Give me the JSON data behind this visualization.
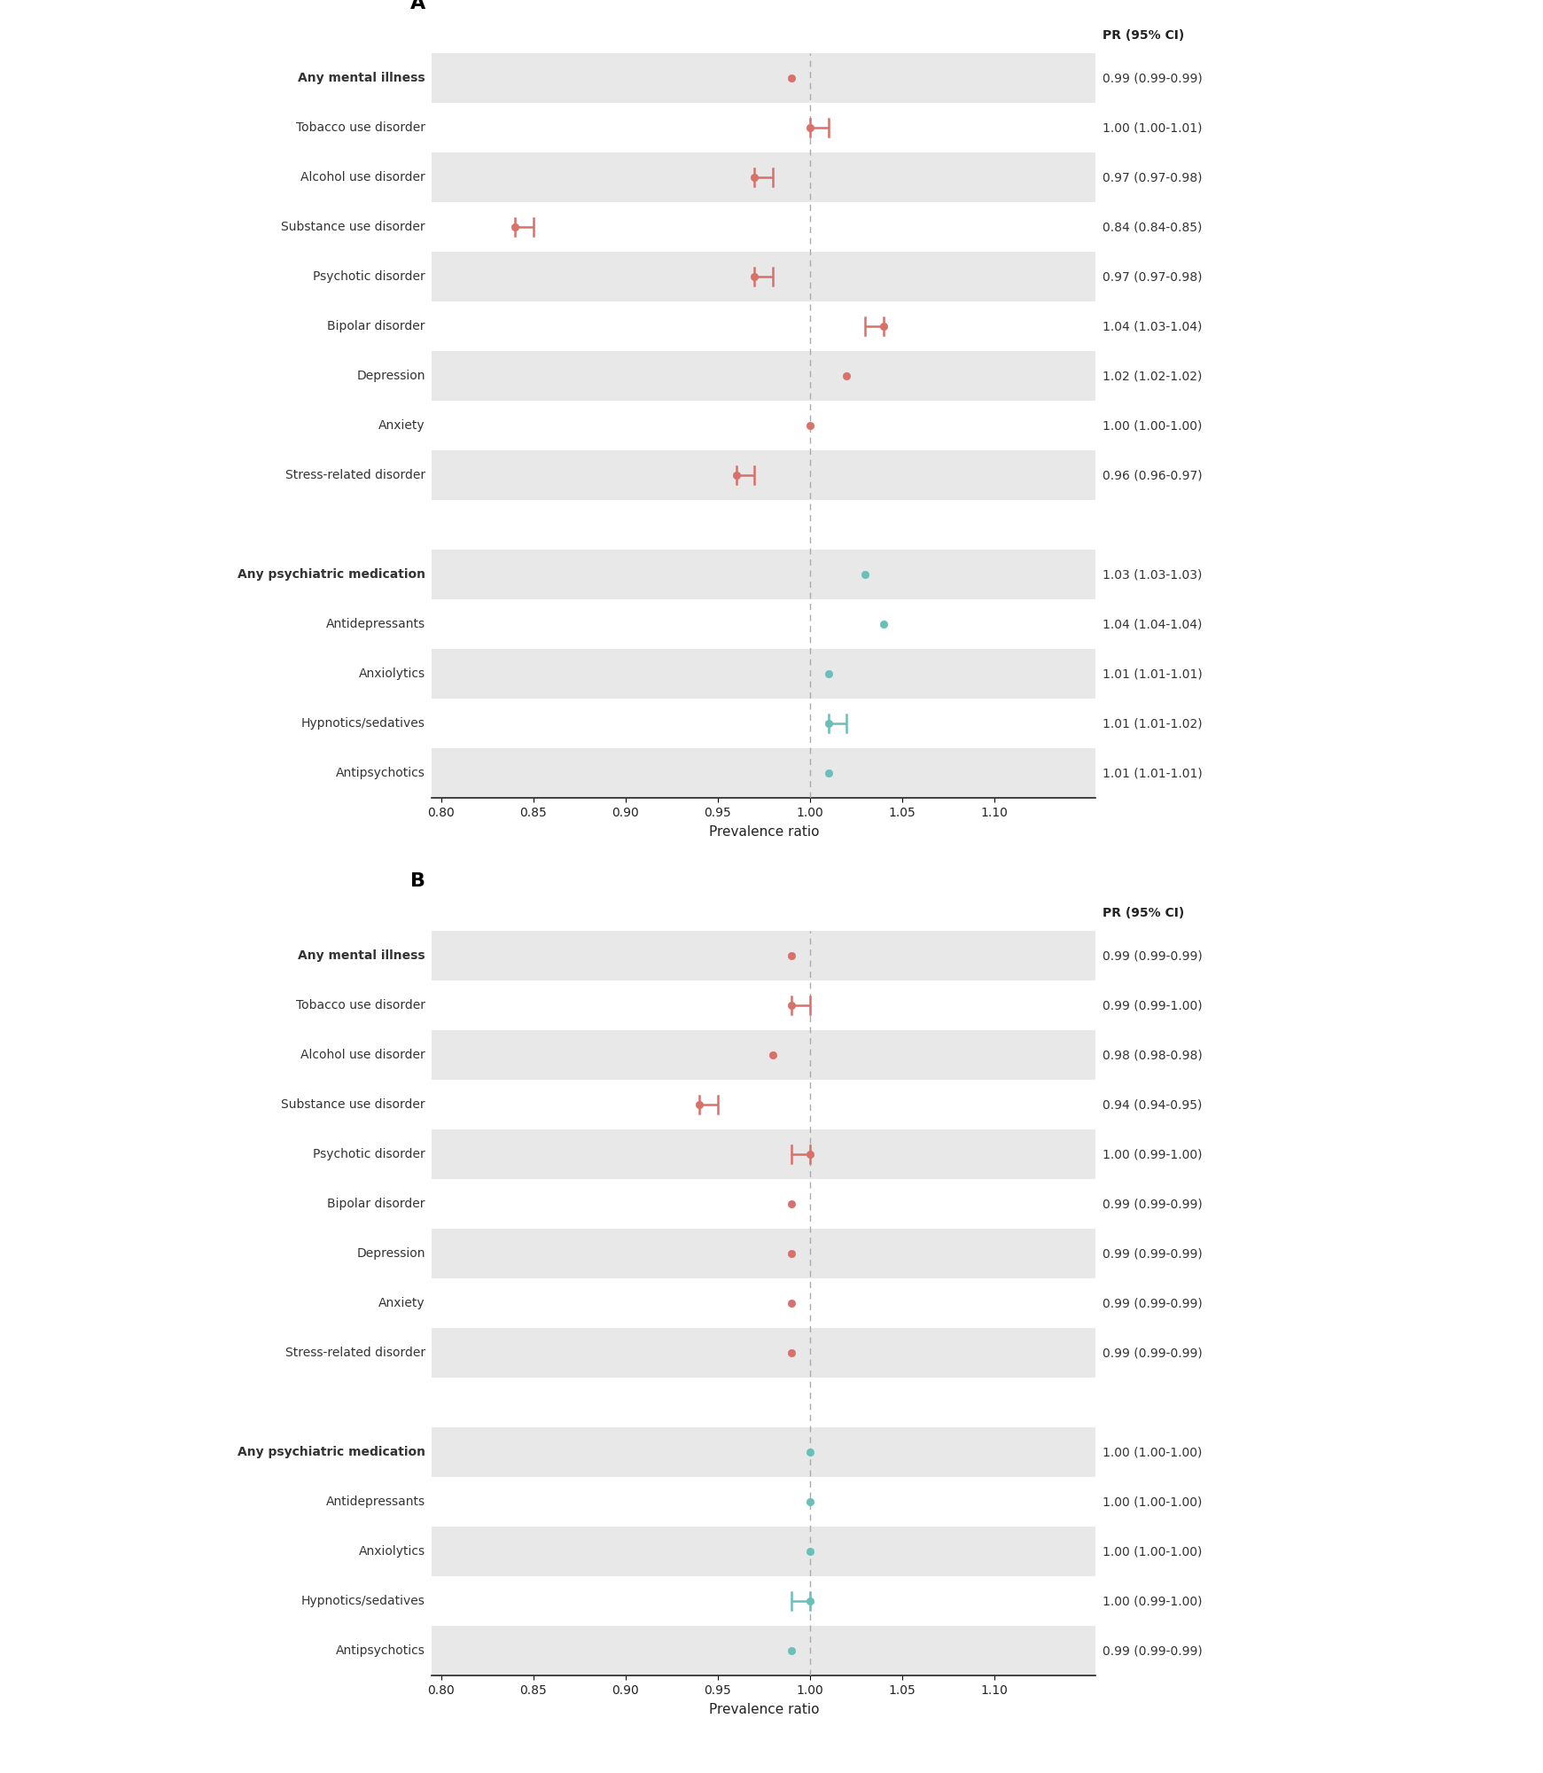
{
  "panel_A": {
    "rows": [
      {
        "label": "Any mental illness",
        "pr": 0.99,
        "ci_lo": 0.99,
        "ci_hi": 0.99,
        "text": "0.99 (0.99-0.99)",
        "bold": true,
        "color": "#d9706a",
        "shaded": true
      },
      {
        "label": "Tobacco use disorder",
        "pr": 1.0,
        "ci_lo": 1.0,
        "ci_hi": 1.01,
        "text": "1.00 (1.00-1.01)",
        "bold": false,
        "color": "#d9706a",
        "shaded": false
      },
      {
        "label": "Alcohol use disorder",
        "pr": 0.97,
        "ci_lo": 0.97,
        "ci_hi": 0.98,
        "text": "0.97 (0.97-0.98)",
        "bold": false,
        "color": "#d9706a",
        "shaded": true
      },
      {
        "label": "Substance use disorder",
        "pr": 0.84,
        "ci_lo": 0.84,
        "ci_hi": 0.85,
        "text": "0.84 (0.84-0.85)",
        "bold": false,
        "color": "#d9706a",
        "shaded": false
      },
      {
        "label": "Psychotic disorder",
        "pr": 0.97,
        "ci_lo": 0.97,
        "ci_hi": 0.98,
        "text": "0.97 (0.97-0.98)",
        "bold": false,
        "color": "#d9706a",
        "shaded": true
      },
      {
        "label": "Bipolar disorder",
        "pr": 1.04,
        "ci_lo": 1.03,
        "ci_hi": 1.04,
        "text": "1.04 (1.03-1.04)",
        "bold": false,
        "color": "#d9706a",
        "shaded": false
      },
      {
        "label": "Depression",
        "pr": 1.02,
        "ci_lo": 1.02,
        "ci_hi": 1.02,
        "text": "1.02 (1.02-1.02)",
        "bold": false,
        "color": "#d9706a",
        "shaded": true
      },
      {
        "label": "Anxiety",
        "pr": 1.0,
        "ci_lo": 1.0,
        "ci_hi": 1.0,
        "text": "1.00 (1.00-1.00)",
        "bold": false,
        "color": "#d9706a",
        "shaded": false
      },
      {
        "label": "Stress-related disorder",
        "pr": 0.96,
        "ci_lo": 0.96,
        "ci_hi": 0.97,
        "text": "0.96 (0.96-0.97)",
        "bold": false,
        "color": "#d9706a",
        "shaded": true
      },
      {
        "label": "",
        "pr": null,
        "ci_lo": null,
        "ci_hi": null,
        "text": "",
        "bold": false,
        "color": null,
        "shaded": false
      },
      {
        "label": "Any psychiatric medication",
        "pr": 1.03,
        "ci_lo": 1.03,
        "ci_hi": 1.03,
        "text": "1.03 (1.03-1.03)",
        "bold": true,
        "color": "#6abfb8",
        "shaded": true
      },
      {
        "label": "Antidepressants",
        "pr": 1.04,
        "ci_lo": 1.04,
        "ci_hi": 1.04,
        "text": "1.04 (1.04-1.04)",
        "bold": false,
        "color": "#6abfb8",
        "shaded": false
      },
      {
        "label": "Anxiolytics",
        "pr": 1.01,
        "ci_lo": 1.01,
        "ci_hi": 1.01,
        "text": "1.01 (1.01-1.01)",
        "bold": false,
        "color": "#6abfb8",
        "shaded": true
      },
      {
        "label": "Hypnotics/sedatives",
        "pr": 1.01,
        "ci_lo": 1.01,
        "ci_hi": 1.02,
        "text": "1.01 (1.01-1.02)",
        "bold": false,
        "color": "#6abfb8",
        "shaded": false
      },
      {
        "label": "Antipsychotics",
        "pr": 1.01,
        "ci_lo": 1.01,
        "ci_hi": 1.01,
        "text": "1.01 (1.01-1.01)",
        "bold": false,
        "color": "#6abfb8",
        "shaded": true
      }
    ]
  },
  "panel_B": {
    "rows": [
      {
        "label": "Any mental illness",
        "pr": 0.99,
        "ci_lo": 0.99,
        "ci_hi": 0.99,
        "text": "0.99 (0.99-0.99)",
        "bold": true,
        "color": "#d9706a",
        "shaded": true
      },
      {
        "label": "Tobacco use disorder",
        "pr": 0.99,
        "ci_lo": 0.99,
        "ci_hi": 1.0,
        "text": "0.99 (0.99-1.00)",
        "bold": false,
        "color": "#d9706a",
        "shaded": false
      },
      {
        "label": "Alcohol use disorder",
        "pr": 0.98,
        "ci_lo": 0.98,
        "ci_hi": 0.98,
        "text": "0.98 (0.98-0.98)",
        "bold": false,
        "color": "#d9706a",
        "shaded": true
      },
      {
        "label": "Substance use disorder",
        "pr": 0.94,
        "ci_lo": 0.94,
        "ci_hi": 0.95,
        "text": "0.94 (0.94-0.95)",
        "bold": false,
        "color": "#d9706a",
        "shaded": false
      },
      {
        "label": "Psychotic disorder",
        "pr": 1.0,
        "ci_lo": 0.99,
        "ci_hi": 1.0,
        "text": "1.00 (0.99-1.00)",
        "bold": false,
        "color": "#d9706a",
        "shaded": true
      },
      {
        "label": "Bipolar disorder",
        "pr": 0.99,
        "ci_lo": 0.99,
        "ci_hi": 0.99,
        "text": "0.99 (0.99-0.99)",
        "bold": false,
        "color": "#d9706a",
        "shaded": false
      },
      {
        "label": "Depression",
        "pr": 0.99,
        "ci_lo": 0.99,
        "ci_hi": 0.99,
        "text": "0.99 (0.99-0.99)",
        "bold": false,
        "color": "#d9706a",
        "shaded": true
      },
      {
        "label": "Anxiety",
        "pr": 0.99,
        "ci_lo": 0.99,
        "ci_hi": 0.99,
        "text": "0.99 (0.99-0.99)",
        "bold": false,
        "color": "#d9706a",
        "shaded": false
      },
      {
        "label": "Stress-related disorder",
        "pr": 0.99,
        "ci_lo": 0.99,
        "ci_hi": 0.99,
        "text": "0.99 (0.99-0.99)",
        "bold": false,
        "color": "#d9706a",
        "shaded": true
      },
      {
        "label": "",
        "pr": null,
        "ci_lo": null,
        "ci_hi": null,
        "text": "",
        "bold": false,
        "color": null,
        "shaded": false
      },
      {
        "label": "Any psychiatric medication",
        "pr": 1.0,
        "ci_lo": 1.0,
        "ci_hi": 1.0,
        "text": "1.00 (1.00-1.00)",
        "bold": true,
        "color": "#6abfb8",
        "shaded": true
      },
      {
        "label": "Antidepressants",
        "pr": 1.0,
        "ci_lo": 1.0,
        "ci_hi": 1.0,
        "text": "1.00 (1.00-1.00)",
        "bold": false,
        "color": "#6abfb8",
        "shaded": false
      },
      {
        "label": "Anxiolytics",
        "pr": 1.0,
        "ci_lo": 1.0,
        "ci_hi": 1.0,
        "text": "1.00 (1.00-1.00)",
        "bold": false,
        "color": "#6abfb8",
        "shaded": true
      },
      {
        "label": "Hypnotics/sedatives",
        "pr": 1.0,
        "ci_lo": 0.99,
        "ci_hi": 1.0,
        "text": "1.00 (0.99-1.00)",
        "bold": false,
        "color": "#6abfb8",
        "shaded": false
      },
      {
        "label": "Antipsychotics",
        "pr": 0.99,
        "ci_lo": 0.99,
        "ci_hi": 0.99,
        "text": "0.99 (0.99-0.99)",
        "bold": false,
        "color": "#6abfb8",
        "shaded": true
      }
    ]
  },
  "xlim": [
    0.795,
    1.155
  ],
  "xticks": [
    0.8,
    0.85,
    0.9,
    0.95,
    1.0,
    1.05,
    1.1
  ],
  "xticklabels": [
    "0.80",
    "0.85",
    "0.90",
    "0.95",
    "1.00",
    "1.05",
    "1.10"
  ],
  "xlabel": "Prevalence ratio",
  "ref_line": 1.0,
  "shaded_color": "#e8e8e8",
  "panel_label_A": "A",
  "panel_label_B": "B",
  "pr_header": "PR (95% CI)",
  "marker_size": 6,
  "ci_linewidth": 1.8,
  "bg_color": "#ffffff",
  "label_fontsize": 10,
  "tick_fontsize": 10,
  "xlabel_fontsize": 11,
  "pr_fontsize": 10
}
